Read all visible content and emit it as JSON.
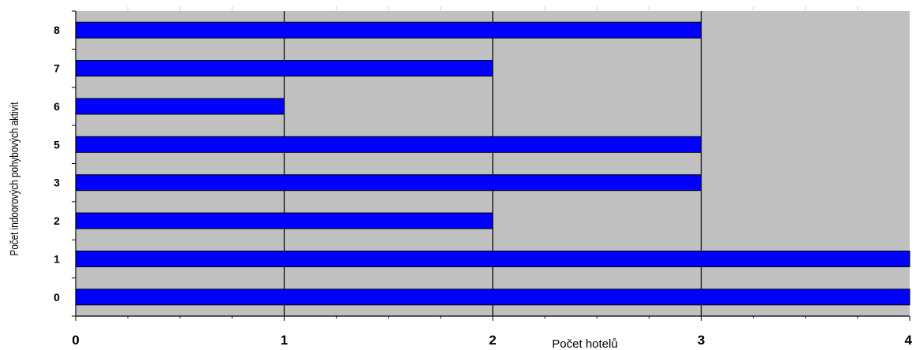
{
  "chart_data": {
    "type": "bar",
    "orientation": "horizontal",
    "categories": [
      "0",
      "1",
      "2",
      "3",
      "5",
      "6",
      "7",
      "8"
    ],
    "values": [
      4,
      4,
      2,
      3,
      3,
      1,
      2,
      3
    ],
    "xlabel": "Počet hotelů",
    "ylabel": "Počet indoorových pohybových aktivit",
    "xlim": [
      0,
      4
    ],
    "xticks": [
      "0",
      "1",
      "2",
      "3",
      "4"
    ],
    "grid": "vertical",
    "legend": "none",
    "colors": {
      "bar": "#0000ff",
      "bar_edge": "#000000",
      "plot_background": "#c0c0c0",
      "gridline": "#000000"
    }
  }
}
